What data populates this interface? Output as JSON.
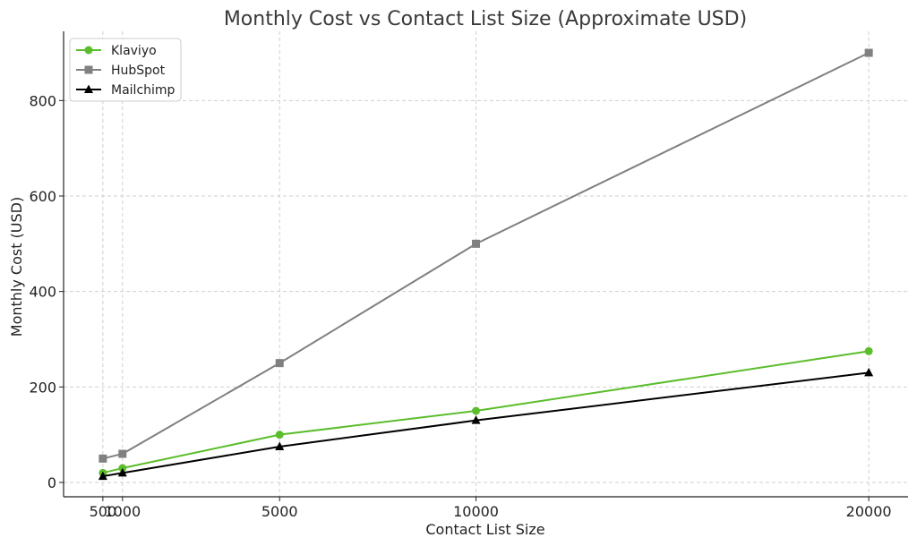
{
  "chart_data": {
    "type": "line",
    "title": "Monthly Cost vs Contact List Size (Approximate USD)",
    "xlabel": "Contact List Size",
    "ylabel": "Monthly Cost (USD)",
    "x": [
      500,
      1000,
      5000,
      10000,
      20000
    ],
    "x_ticks": [
      500,
      1000,
      5000,
      10000,
      20000
    ],
    "x_tick_labels": [
      "500",
      "1000",
      "5000",
      "10000",
      "20000"
    ],
    "y_ticks": [
      0,
      200,
      400,
      600,
      800
    ],
    "y_tick_labels": [
      "0",
      "200",
      "400",
      "600",
      "800"
    ],
    "xlim": [
      -500,
      21000
    ],
    "ylim": [
      -30,
      945
    ],
    "grid": true,
    "legend_position": "top-left",
    "series": [
      {
        "name": "Klaviyo",
        "color": "#5bbd2b",
        "marker": "circle",
        "values": [
          20,
          30,
          100,
          150,
          275
        ]
      },
      {
        "name": "HubSpot",
        "color": "#808080",
        "marker": "square",
        "values": [
          50,
          60,
          250,
          500,
          900
        ]
      },
      {
        "name": "Mailchimp",
        "color": "#000000",
        "marker": "triangle",
        "values": [
          13,
          20,
          75,
          130,
          230
        ]
      }
    ]
  }
}
